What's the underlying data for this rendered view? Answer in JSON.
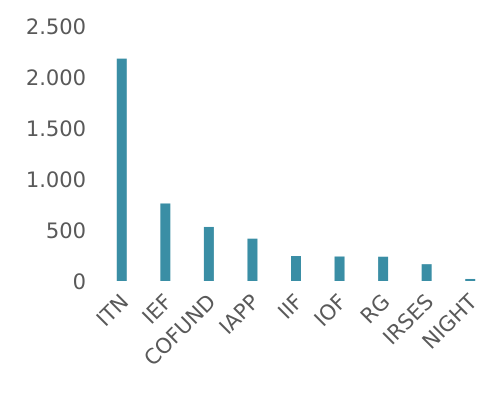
{
  "chart_data": {
    "type": "bar",
    "title": "",
    "xlabel": "",
    "ylabel": "",
    "categories": [
      "ITN",
      "IEF",
      "COFUND",
      "IAPP",
      "IIF",
      "IOF",
      "RG",
      "IRSES",
      "NIGHT"
    ],
    "values": [
      2180,
      760,
      530,
      415,
      245,
      240,
      238,
      165,
      20
    ],
    "ylim": [
      0,
      2500
    ],
    "yticks": [
      0,
      500,
      1000,
      1500,
      2000,
      2500
    ],
    "ytick_labels": [
      "0",
      "500",
      "1.000",
      "1.500",
      "2.000",
      "2.500"
    ],
    "grid": false,
    "legend": "none",
    "bar_color": "#3a8ea5"
  }
}
